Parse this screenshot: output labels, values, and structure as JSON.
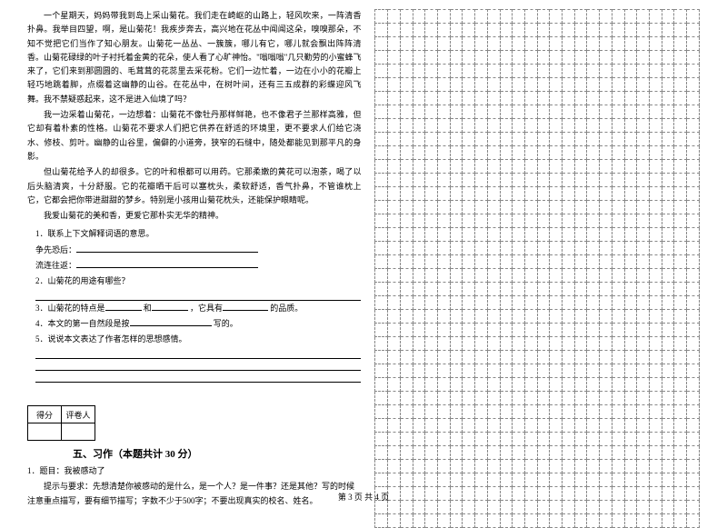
{
  "passage": {
    "p1": "一个星期天，妈妈带我到岛上采山菊花。我们走在崎岖的山路上，轻风吹来，一阵清香扑鼻。我举目四望，啊，是山菊花！我疾步奔去，高兴地在花丛中闻闻这朵，嗅嗅那朵，不知不觉把它们当作了知心朋友。山菊花一丛丛、一簇簇，哪儿有它，哪儿就会飘出阵阵清香。山菊花碌绿的叶子衬托着金黄的花朵，使人看了心旷神怡。\"嗡嗡嗡\"几只勤劳的小蜜蜂飞来了，它们来到那圆圆的、毛茸茸的花蕊里去采花粉。它们一边忙着，一边在小小的花瓣上轻巧地跳着脚，点缀着这幽静的山谷。在花丛中，在树叶间，还有三五成群的彩蝶迎风飞舞。我不禁疑惑起来，这不是进入仙境了吗？",
    "p2": "我一边采着山菊花，一边想着：山菊花不像牡丹那样鲜艳，也不像君子兰那样高雅，但它却有着朴素的性格。山菊花不要求人们把它供养在舒适的环境里，更不要求人们给它浇水、修枝、剪叶。幽静的山谷里，偏僻的小道旁，狭窄的石缝中，随处都能见到那平凡的身影。",
    "p3": "但山菊花给予人的却很多。它的叶和根都可以用药。它那柔嫩的黄花可以泡茶，喝了以后头脑清爽，十分舒服。它的花瓣晒干后可以塞枕头，柔软舒适，香气扑鼻，不管谁枕上它，它都会把你带进甜甜的梦乡。特别是小孩用山菊花枕头，还能保护眼睛呢。",
    "p4": "我爱山菊花的美和香，更爱它那朴实无华的精神。"
  },
  "questions": {
    "q1_title": "1．联系上下文解释词语的意思。",
    "q1_a": "争先恐后：",
    "q1_b": "流连往返：",
    "q2_title": "2．山菊花的用途有哪些？",
    "q3_a": "3．山菊花的特点是",
    "q3_b": "和",
    "q3_c": "，它具有",
    "q3_d": "的品质。",
    "q4_a": "4．本文的第一自然段是按",
    "q4_b": "写的。",
    "q5_title": "5．说说本文表达了作者怎样的思想感情。"
  },
  "scoreTable": {
    "h1": "得分",
    "h2": "评卷人"
  },
  "section5": {
    "title": "五、习作（本题共计 30 分）",
    "essay_title": "1．题目：我被感动了",
    "essay_prompt": "提示与要求：先想清楚你被感动的是什么，是一个人？是一件事？还是其他？写的时候注意重点描写，要有细节描写；字数不少于500字；不要出现真实的校名、姓名。"
  },
  "grid": {
    "rows": 38,
    "cols": 26
  },
  "footer": "第 3 页 共 4 页"
}
